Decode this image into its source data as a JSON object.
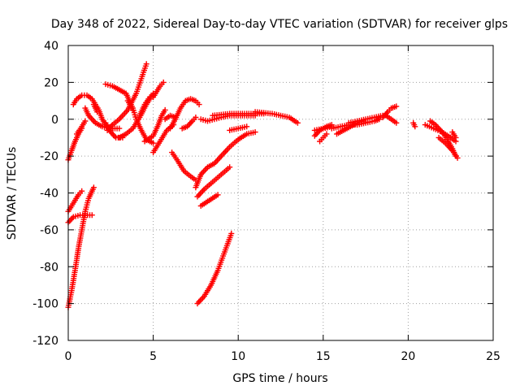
{
  "chart_data": {
    "type": "scatter",
    "title": "Day 348 of 2022, Sidereal Day-to-day VTEC variation (SDTVAR) for receiver glps",
    "xlabel": "GPS time / hours",
    "ylabel": "SDTVAR / TECUs",
    "xlim": [
      0,
      25
    ],
    "ylim": [
      -120,
      40
    ],
    "xticks": [
      0,
      5,
      10,
      15,
      20,
      25
    ],
    "yticks": [
      -120,
      -100,
      -80,
      -60,
      -40,
      -20,
      0,
      20,
      40
    ],
    "grid": true,
    "marker": "plus",
    "color": "#ff0000",
    "tracks": [
      [
        [
          0.0,
          -22
        ],
        [
          0.2,
          -17
        ],
        [
          0.4,
          -12
        ],
        [
          0.6,
          -8
        ],
        [
          0.8,
          -5
        ]
      ],
      [
        [
          0.3,
          8
        ],
        [
          0.5,
          11
        ],
        [
          0.8,
          13
        ],
        [
          1.1,
          13
        ],
        [
          1.4,
          11
        ],
        [
          1.6,
          8
        ],
        [
          1.8,
          5
        ],
        [
          2.0,
          0
        ],
        [
          2.2,
          -3
        ],
        [
          2.5,
          -6
        ]
      ],
      [
        [
          0.0,
          -50
        ],
        [
          0.2,
          -47
        ],
        [
          0.4,
          -44
        ],
        [
          0.6,
          -41
        ],
        [
          0.8,
          -39
        ]
      ],
      [
        [
          0.0,
          -56
        ],
        [
          0.3,
          -53
        ],
        [
          0.7,
          -52
        ],
        [
          1.0,
          -52
        ],
        [
          1.4,
          -52
        ]
      ],
      [
        [
          0.0,
          -102
        ],
        [
          0.2,
          -93
        ],
        [
          0.4,
          -82
        ],
        [
          0.6,
          -70
        ],
        [
          0.8,
          -60
        ],
        [
          1.0,
          -50
        ],
        [
          1.2,
          -43
        ],
        [
          1.5,
          -37
        ]
      ],
      [
        [
          0.5,
          -8
        ],
        [
          0.8,
          -4
        ],
        [
          1.0,
          -1
        ]
      ],
      [
        [
          1.0,
          6
        ],
        [
          1.2,
          2
        ],
        [
          1.6,
          -2
        ],
        [
          2.0,
          -4
        ],
        [
          2.5,
          -5
        ],
        [
          3.0,
          -5
        ]
      ],
      [
        [
          1.5,
          8
        ],
        [
          1.7,
          4
        ]
      ],
      [
        [
          2.3,
          -6
        ],
        [
          2.6,
          -3
        ],
        [
          3.0,
          0
        ],
        [
          3.5,
          5
        ],
        [
          4.0,
          14
        ],
        [
          4.3,
          22
        ],
        [
          4.6,
          30
        ]
      ],
      [
        [
          2.2,
          19
        ],
        [
          2.6,
          18
        ],
        [
          3.0,
          16
        ],
        [
          3.4,
          14
        ],
        [
          3.6,
          10
        ],
        [
          3.8,
          6
        ],
        [
          4.0,
          0
        ],
        [
          4.3,
          -6
        ],
        [
          4.6,
          -11
        ],
        [
          5.0,
          -13
        ]
      ],
      [
        [
          2.2,
          -2
        ],
        [
          2.5,
          -7
        ],
        [
          2.8,
          -10
        ],
        [
          3.2,
          -10
        ]
      ],
      [
        [
          3.0,
          -10
        ],
        [
          3.4,
          -8
        ],
        [
          3.8,
          -5
        ],
        [
          4.2,
          1
        ],
        [
          4.6,
          8
        ],
        [
          5.0,
          14
        ]
      ],
      [
        [
          3.5,
          10
        ],
        [
          3.8,
          5
        ]
      ],
      [
        [
          4.2,
          2
        ],
        [
          4.5,
          8
        ],
        [
          4.8,
          12
        ]
      ],
      [
        [
          4.5,
          -12
        ],
        [
          5.0,
          -9
        ],
        [
          5.3,
          -3
        ],
        [
          5.5,
          2
        ],
        [
          5.7,
          5
        ]
      ],
      [
        [
          5.0,
          12
        ],
        [
          5.4,
          18
        ],
        [
          5.6,
          20
        ]
      ],
      [
        [
          5.0,
          -18
        ],
        [
          5.4,
          -12
        ],
        [
          5.8,
          -6
        ],
        [
          6.2,
          -3
        ]
      ],
      [
        [
          5.7,
          0
        ],
        [
          6.0,
          2
        ],
        [
          6.3,
          1
        ]
      ],
      [
        [
          6.0,
          -5
        ],
        [
          6.3,
          0
        ],
        [
          6.6,
          6
        ],
        [
          6.9,
          10
        ],
        [
          7.2,
          11
        ],
        [
          7.5,
          10
        ],
        [
          7.7,
          8
        ]
      ],
      [
        [
          6.1,
          -18
        ],
        [
          6.4,
          -22
        ],
        [
          6.8,
          -28
        ],
        [
          7.2,
          -31
        ],
        [
          7.5,
          -33
        ]
      ],
      [
        [
          6.7,
          -5
        ],
        [
          7.0,
          -4
        ],
        [
          7.3,
          -1
        ],
        [
          7.5,
          1
        ]
      ],
      [
        [
          7.5,
          -37
        ],
        [
          7.8,
          -30
        ],
        [
          8.2,
          -26
        ],
        [
          8.6,
          -24
        ],
        [
          9.0,
          -20
        ],
        [
          9.5,
          -15
        ],
        [
          10.0,
          -11
        ],
        [
          10.5,
          -8
        ],
        [
          11.0,
          -7
        ]
      ],
      [
        [
          7.6,
          -42
        ],
        [
          8.0,
          -38
        ],
        [
          8.5,
          -34
        ],
        [
          9.0,
          -30
        ],
        [
          9.5,
          -26
        ]
      ],
      [
        [
          7.8,
          -47
        ],
        [
          8.3,
          -44
        ],
        [
          8.8,
          -41
        ]
      ],
      [
        [
          7.6,
          -100
        ],
        [
          8.0,
          -96
        ],
        [
          8.4,
          -90
        ],
        [
          8.8,
          -82
        ],
        [
          9.2,
          -72
        ],
        [
          9.6,
          -62
        ]
      ],
      [
        [
          7.8,
          0
        ],
        [
          8.2,
          -1
        ],
        [
          8.6,
          0
        ],
        [
          9.0,
          1
        ],
        [
          9.5,
          2
        ],
        [
          10.0,
          2
        ],
        [
          10.5,
          2
        ],
        [
          11.0,
          2
        ]
      ],
      [
        [
          8.5,
          2
        ],
        [
          9.0,
          2.5
        ],
        [
          9.5,
          3
        ],
        [
          10.0,
          3
        ],
        [
          10.5,
          3
        ],
        [
          11.0,
          3
        ],
        [
          11.5,
          3
        ]
      ],
      [
        [
          9.5,
          -6
        ],
        [
          10.0,
          -5
        ],
        [
          10.5,
          -4
        ]
      ],
      [
        [
          11.0,
          4
        ],
        [
          11.5,
          3.5
        ],
        [
          12.0,
          3
        ],
        [
          12.5,
          2
        ],
        [
          13.0,
          1
        ],
        [
          13.5,
          -2
        ]
      ],
      [
        [
          14.5,
          -6
        ],
        [
          15.0,
          -5
        ],
        [
          15.5,
          -4
        ]
      ],
      [
        [
          14.5,
          -9
        ],
        [
          14.8,
          -6
        ],
        [
          15.2,
          -4
        ],
        [
          15.5,
          -3
        ]
      ],
      [
        [
          14.8,
          -12
        ],
        [
          15.0,
          -10
        ],
        [
          15.2,
          -8
        ]
      ],
      [
        [
          15.8,
          -8
        ],
        [
          16.2,
          -6
        ],
        [
          16.6,
          -4
        ],
        [
          17.0,
          -2
        ],
        [
          17.4,
          -1
        ]
      ],
      [
        [
          15.5,
          -5
        ],
        [
          16.0,
          -4
        ],
        [
          16.5,
          -3
        ],
        [
          17.0,
          -3
        ],
        [
          17.5,
          -2
        ],
        [
          18.0,
          -1
        ],
        [
          18.3,
          0
        ]
      ],
      [
        [
          16.5,
          -2
        ],
        [
          17.0,
          -1
        ],
        [
          17.5,
          0
        ],
        [
          18.0,
          1
        ],
        [
          18.5,
          2
        ]
      ],
      [
        [
          18.5,
          1
        ],
        [
          18.8,
          4
        ],
        [
          19.0,
          6
        ],
        [
          19.3,
          7
        ]
      ],
      [
        [
          18.7,
          2
        ],
        [
          19.0,
          0
        ],
        [
          19.3,
          -2
        ]
      ],
      [
        [
          20.3,
          -2
        ],
        [
          20.4,
          -4
        ]
      ],
      [
        [
          21.0,
          -3
        ],
        [
          21.5,
          -5
        ],
        [
          22.0,
          -7
        ],
        [
          22.5,
          -10
        ],
        [
          22.8,
          -12
        ]
      ],
      [
        [
          21.3,
          -1
        ],
        [
          21.6,
          -3
        ],
        [
          22.0,
          -7
        ],
        [
          22.3,
          -11
        ],
        [
          22.6,
          -16
        ],
        [
          22.8,
          -20
        ]
      ],
      [
        [
          21.8,
          -10
        ],
        [
          22.2,
          -13
        ],
        [
          22.6,
          -17
        ],
        [
          22.9,
          -21
        ]
      ],
      [
        [
          22.6,
          -7
        ],
        [
          22.8,
          -10
        ]
      ]
    ]
  }
}
